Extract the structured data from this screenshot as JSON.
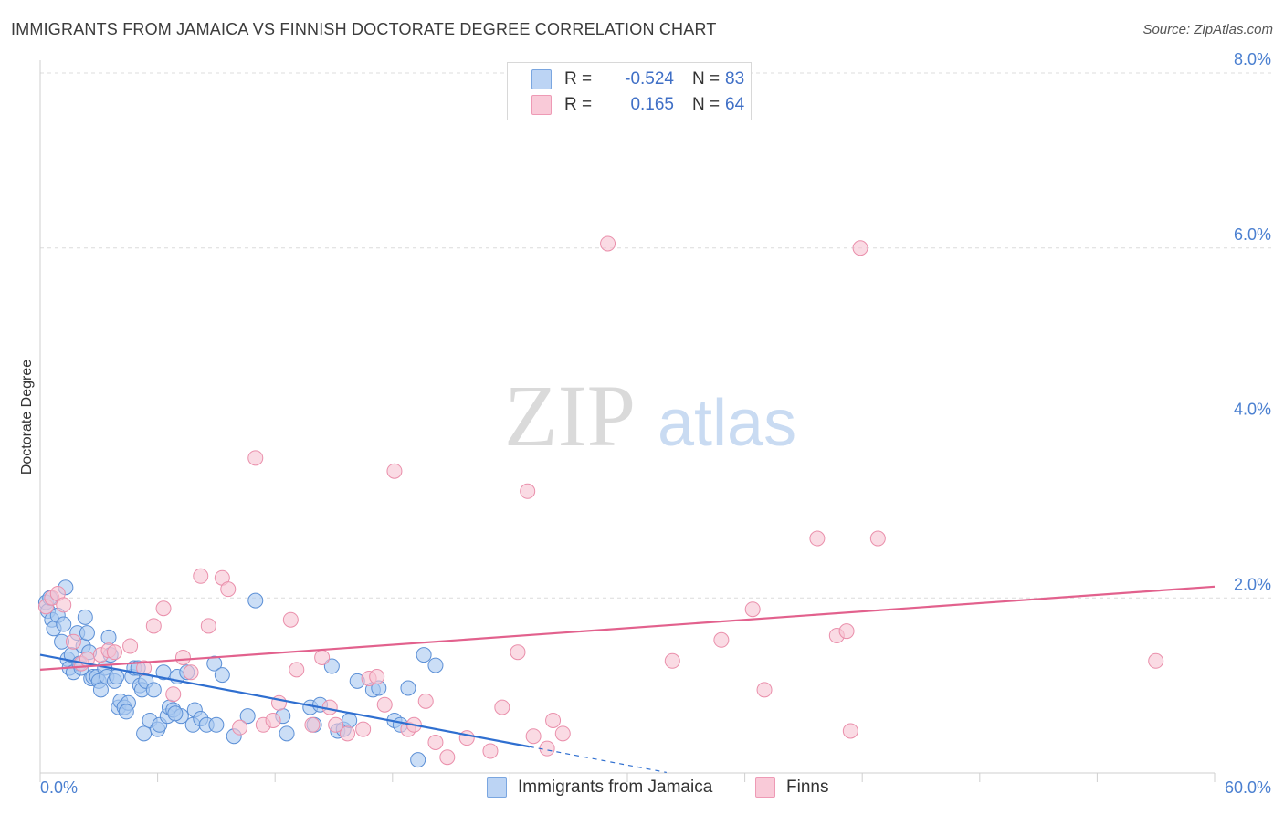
{
  "title": "IMMIGRANTS FROM JAMAICA VS FINNISH DOCTORATE DEGREE CORRELATION CHART",
  "source": "Source: ZipAtlas.com",
  "watermark": {
    "zip": "ZIP",
    "atlas": "atlas"
  },
  "legend": {
    "rows": [
      {
        "r_label": "R =",
        "r_value": "-0.524",
        "n_label": "N =",
        "n_value": "83",
        "color": "#a8c8f0"
      },
      {
        "r_label": "R =",
        "r_value": "0.165",
        "n_label": "N =",
        "n_value": "64",
        "color": "#f7b6c8"
      }
    ]
  },
  "bottom_legend": [
    {
      "label": "Immigrants from Jamaica",
      "color": "#a8c8f0"
    },
    {
      "label": "Finns",
      "color": "#f7b6c8"
    }
  ],
  "colors": {
    "blue_fill": "#a8c8f0",
    "blue_stroke": "#5b8fd6",
    "blue_line": "#2f6fd0",
    "pink_fill": "#f7c3d2",
    "pink_stroke": "#ea8fab",
    "pink_line": "#e2618d",
    "grid": "#dcdcdc",
    "tick": "#4a7fd0"
  },
  "chart_data": {
    "type": "scatter",
    "title": "IMMIGRANTS FROM JAMAICA VS FINNISH DOCTORATE DEGREE CORRELATION CHART",
    "xlabel": "",
    "ylabel": "Doctorate Degree",
    "xlim": [
      0,
      60
    ],
    "ylim": [
      0,
      8.0
    ],
    "x_tick_labels": [
      "0.0%",
      "60.0%"
    ],
    "y_ticks": [
      2.0,
      4.0,
      6.0,
      8.0
    ],
    "y_tick_labels": [
      "2.0%",
      "4.0%",
      "6.0%",
      "8.0%"
    ],
    "series": [
      {
        "name": "Immigrants from Jamaica",
        "trend": {
          "x0": 0,
          "y0": 1.35,
          "x1": 25,
          "y1": 0.3,
          "dash_to_x": 32
        },
        "points": [
          [
            0.3,
            1.95
          ],
          [
            0.4,
            1.85
          ],
          [
            0.5,
            2.0
          ],
          [
            0.6,
            1.75
          ],
          [
            0.7,
            1.65
          ],
          [
            0.9,
            1.8
          ],
          [
            1.1,
            1.5
          ],
          [
            1.2,
            1.7
          ],
          [
            1.3,
            2.12
          ],
          [
            1.4,
            1.3
          ],
          [
            1.5,
            1.2
          ],
          [
            1.6,
            1.35
          ],
          [
            1.7,
            1.15
          ],
          [
            1.9,
            1.6
          ],
          [
            2.0,
            1.25
          ],
          [
            2.1,
            1.2
          ],
          [
            2.2,
            1.45
          ],
          [
            2.3,
            1.78
          ],
          [
            2.4,
            1.6
          ],
          [
            2.5,
            1.38
          ],
          [
            2.6,
            1.08
          ],
          [
            2.7,
            1.1
          ],
          [
            2.9,
            1.1
          ],
          [
            3.0,
            1.05
          ],
          [
            3.1,
            0.95
          ],
          [
            3.3,
            1.2
          ],
          [
            3.4,
            1.1
          ],
          [
            3.5,
            1.55
          ],
          [
            3.6,
            1.35
          ],
          [
            3.8,
            1.05
          ],
          [
            3.9,
            1.1
          ],
          [
            4.0,
            0.75
          ],
          [
            4.1,
            0.82
          ],
          [
            4.3,
            0.75
          ],
          [
            4.5,
            0.8
          ],
          [
            4.7,
            1.1
          ],
          [
            4.8,
            1.2
          ],
          [
            5.0,
            1.2
          ],
          [
            5.1,
            1.0
          ],
          [
            5.2,
            0.95
          ],
          [
            5.3,
            0.45
          ],
          [
            5.4,
            1.05
          ],
          [
            5.6,
            0.6
          ],
          [
            5.8,
            0.95
          ],
          [
            6.0,
            0.5
          ],
          [
            6.1,
            0.55
          ],
          [
            6.3,
            1.15
          ],
          [
            6.5,
            0.65
          ],
          [
            6.6,
            0.75
          ],
          [
            6.8,
            0.72
          ],
          [
            7.0,
            1.1
          ],
          [
            7.2,
            0.65
          ],
          [
            7.5,
            1.15
          ],
          [
            7.8,
            0.55
          ],
          [
            7.9,
            0.72
          ],
          [
            8.2,
            0.62
          ],
          [
            8.5,
            0.55
          ],
          [
            8.9,
            1.25
          ],
          [
            9.0,
            0.55
          ],
          [
            9.3,
            1.12
          ],
          [
            9.9,
            0.42
          ],
          [
            10.6,
            0.65
          ],
          [
            11.0,
            1.97
          ],
          [
            12.4,
            0.65
          ],
          [
            12.6,
            0.45
          ],
          [
            13.8,
            0.75
          ],
          [
            14.0,
            0.55
          ],
          [
            14.3,
            0.78
          ],
          [
            14.9,
            1.22
          ],
          [
            15.2,
            0.48
          ],
          [
            15.5,
            0.5
          ],
          [
            15.8,
            0.6
          ],
          [
            16.2,
            1.05
          ],
          [
            17.0,
            0.95
          ],
          [
            17.3,
            0.97
          ],
          [
            18.1,
            0.6
          ],
          [
            18.4,
            0.55
          ],
          [
            18.8,
            0.97
          ],
          [
            19.3,
            0.15
          ],
          [
            19.6,
            1.35
          ],
          [
            20.2,
            1.23
          ],
          [
            6.9,
            0.68
          ],
          [
            4.4,
            0.7
          ]
        ]
      },
      {
        "name": "Finns",
        "trend": {
          "x0": 0,
          "y0": 1.18,
          "x1": 60,
          "y1": 2.13
        },
        "points": [
          [
            0.3,
            1.9
          ],
          [
            0.6,
            2.0
          ],
          [
            0.9,
            2.05
          ],
          [
            1.2,
            1.92
          ],
          [
            1.7,
            1.5
          ],
          [
            2.1,
            1.25
          ],
          [
            2.4,
            1.3
          ],
          [
            3.1,
            1.35
          ],
          [
            3.5,
            1.4
          ],
          [
            3.8,
            1.38
          ],
          [
            4.6,
            1.45
          ],
          [
            5.3,
            1.2
          ],
          [
            5.8,
            1.68
          ],
          [
            6.3,
            1.88
          ],
          [
            6.8,
            0.9
          ],
          [
            7.3,
            1.32
          ],
          [
            7.7,
            1.15
          ],
          [
            8.2,
            2.25
          ],
          [
            8.6,
            1.68
          ],
          [
            9.3,
            2.23
          ],
          [
            9.6,
            2.1
          ],
          [
            10.2,
            0.52
          ],
          [
            11.0,
            3.6
          ],
          [
            11.4,
            0.55
          ],
          [
            11.9,
            0.6
          ],
          [
            12.2,
            0.8
          ],
          [
            12.8,
            1.75
          ],
          [
            13.1,
            1.18
          ],
          [
            13.9,
            0.55
          ],
          [
            14.4,
            1.32
          ],
          [
            14.8,
            0.75
          ],
          [
            15.1,
            0.55
          ],
          [
            15.7,
            0.45
          ],
          [
            16.5,
            0.5
          ],
          [
            16.8,
            1.08
          ],
          [
            17.2,
            1.1
          ],
          [
            17.6,
            0.78
          ],
          [
            18.1,
            3.45
          ],
          [
            18.8,
            0.5
          ],
          [
            19.1,
            0.55
          ],
          [
            19.7,
            0.82
          ],
          [
            20.2,
            0.35
          ],
          [
            20.8,
            0.18
          ],
          [
            21.8,
            0.4
          ],
          [
            23.0,
            0.25
          ],
          [
            23.6,
            0.75
          ],
          [
            24.4,
            1.38
          ],
          [
            24.9,
            3.22
          ],
          [
            25.2,
            0.42
          ],
          [
            25.9,
            0.28
          ],
          [
            26.7,
            0.45
          ],
          [
            26.2,
            0.6
          ],
          [
            29.0,
            6.05
          ],
          [
            32.3,
            1.28
          ],
          [
            34.8,
            1.52
          ],
          [
            36.4,
            1.87
          ],
          [
            37.0,
            0.95
          ],
          [
            39.7,
            2.68
          ],
          [
            40.7,
            1.57
          ],
          [
            41.2,
            1.62
          ],
          [
            41.4,
            0.48
          ],
          [
            41.9,
            6.0
          ],
          [
            42.8,
            2.68
          ],
          [
            57.0,
            1.28
          ]
        ]
      }
    ]
  }
}
